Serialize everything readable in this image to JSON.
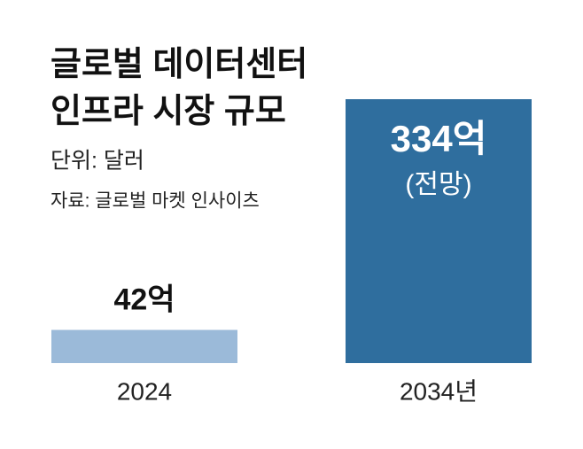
{
  "chart_data": {
    "type": "bar",
    "title": [
      "글로벌 데이터센터",
      "인프라 시장 규모"
    ],
    "unit": "단위: 달러",
    "source": "자료: 글로벌 마켓 인사이츠",
    "categories": [
      "2024",
      "2034년"
    ],
    "values": [
      42,
      334
    ],
    "value_labels": [
      "42억",
      "334억"
    ],
    "value_notes": [
      null,
      "(전망)"
    ],
    "colors": [
      "#9bbad9",
      "#2f6e9e"
    ]
  }
}
